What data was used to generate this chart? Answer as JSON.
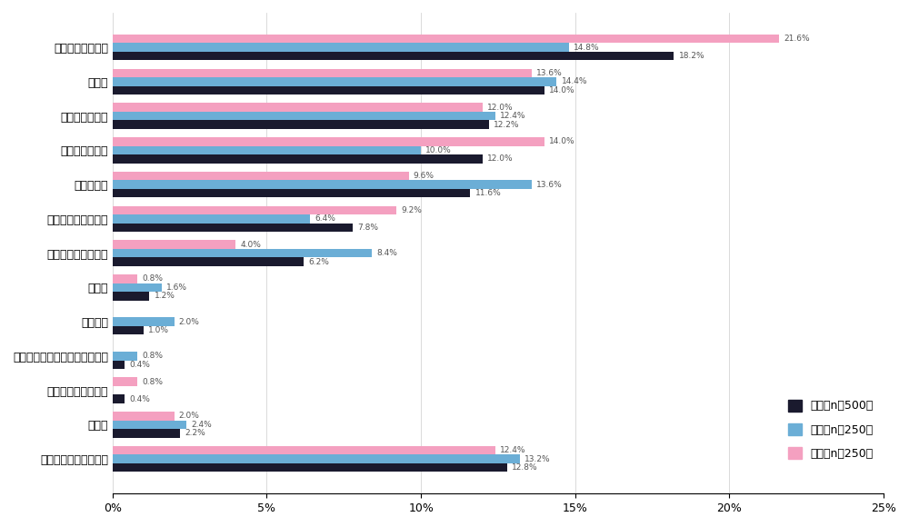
{
  "categories": [
    "健康など身体状況",
    "金銭面",
    "趣味や自己啓発",
    "旅行やレジャー",
    "仕事や学業",
    "家族や親戚との関係",
    "友人や恋人との関係",
    "食事面",
    "購買行動",
    "競技会や大会・展示会への参加",
    "美容やファッション",
    "その他",
    "あてはまるものはない"
  ],
  "全体": [
    18.2,
    14.0,
    12.2,
    12.0,
    11.6,
    7.8,
    6.2,
    1.2,
    1.0,
    0.4,
    0.4,
    2.2,
    12.8
  ],
  "男性": [
    14.8,
    14.4,
    12.4,
    10.0,
    13.6,
    6.4,
    8.4,
    1.6,
    2.0,
    0.8,
    0.0,
    2.4,
    13.2
  ],
  "女性": [
    21.6,
    13.6,
    12.0,
    14.0,
    9.6,
    9.2,
    4.0,
    0.8,
    0.0,
    0.0,
    0.8,
    2.0,
    12.4
  ],
  "colors": {
    "全体": "#1a1a2e",
    "男性": "#6baed6",
    "女性": "#f4a0c0"
  },
  "legend_labels": [
    "全体（n＝500）",
    "男性（n＝250）",
    "女性（n＝250）"
  ],
  "xlim": [
    0,
    25
  ],
  "xticks": [
    0,
    5,
    10,
    15,
    20,
    25
  ],
  "xticklabels": [
    "0%",
    "5%",
    "10%",
    "15%",
    "20%",
    "25%"
  ],
  "bar_height": 0.25,
  "background_color": "#ffffff"
}
